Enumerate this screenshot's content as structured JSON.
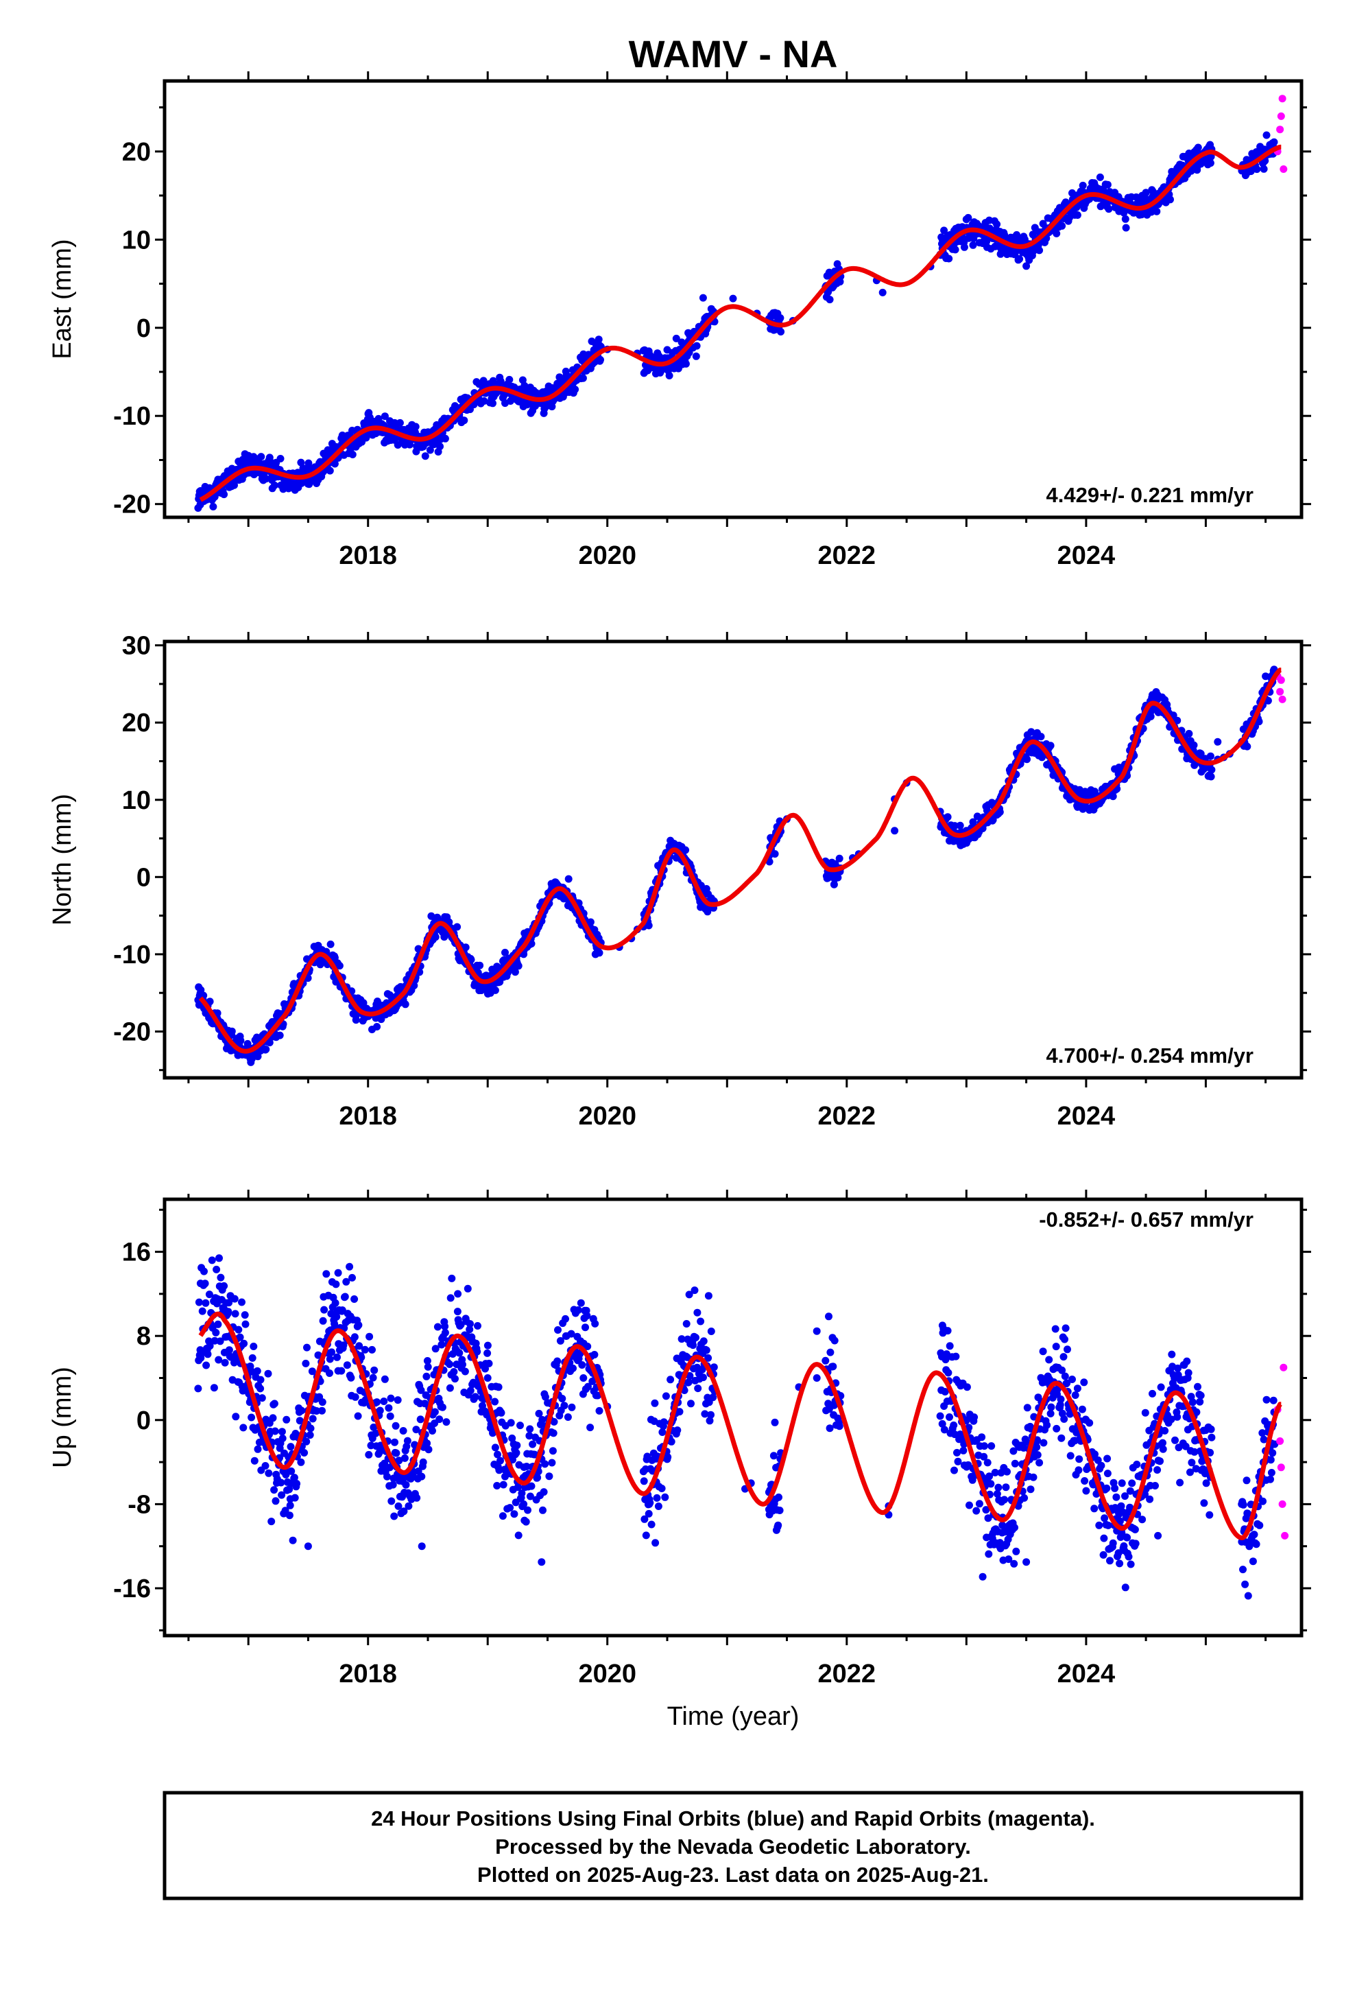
{
  "title": "WAMV - NA",
  "colors": {
    "final_orbits": "#0000ee",
    "rapid_orbits": "#ff00ff",
    "model_fit": "#ee0000",
    "frame": "#000000"
  },
  "chart_data": [
    {
      "type": "scatter",
      "component": "east",
      "title": "WAMV - NA",
      "xlabel": "",
      "ylabel": "East (mm)",
      "xlim": [
        2016.3,
        2025.8
      ],
      "ylim": [
        -21.5,
        28
      ],
      "xticks": [
        2018,
        2020,
        2022,
        2024
      ],
      "yticks": [
        -20,
        -10,
        0,
        10,
        20
      ],
      "rate_text": "4.429+/- 0.221 mm/yr",
      "rate_position": "bottom-right",
      "model": {
        "name": "",
        "color": "#ee0000",
        "x0": 2021.0,
        "intercept": 1.06,
        "slope": 4.429,
        "annual_sin": 0.8,
        "annual_cos": 0.5,
        "semiannual_sin": 0.6,
        "semiannual_cos": 0.7,
        "spline_x": [
          2016.55,
          2017.0,
          2017.5,
          2018.0,
          2018.5,
          2019.0,
          2019.5,
          2020.0,
          2020.5,
          2021.0,
          2021.5,
          2022.0,
          2022.5,
          2023.0,
          2023.5,
          2024.0,
          2024.5,
          2025.0,
          2025.3,
          2025.62
        ],
        "spline_y": [
          -19.8,
          -16.0,
          -16.8,
          -11.5,
          -12.5,
          -7.0,
          -8.0,
          -2.4,
          -4.0,
          2.3,
          0.4,
          6.6,
          5.0,
          11.0,
          9.3,
          15.0,
          13.7,
          19.8,
          18.2,
          20.5
        ]
      },
      "series": [
        {
          "name": "",
          "color": "#0000ee",
          "points": [
            [
              2016.6,
              -18.5
            ],
            [
              2016.8,
              -16.8
            ],
            [
              2017.0,
              -14.5
            ],
            [
              2017.2,
              -15.8
            ],
            [
              2017.4,
              -18.0
            ],
            [
              2017.6,
              -15.2
            ],
            [
              2017.8,
              -12.6
            ],
            [
              2018.0,
              -11.0
            ],
            [
              2018.2,
              -11.2
            ],
            [
              2018.4,
              -12.4
            ],
            [
              2018.6,
              -11.8
            ],
            [
              2018.8,
              -8.0
            ],
            [
              2019.2,
              -7.6
            ],
            [
              2019.4,
              -8.6
            ],
            [
              2019.6,
              -5.6
            ],
            [
              2019.8,
              -3.0
            ],
            [
              2020.5,
              -2.5
            ],
            [
              2020.8,
              3.4
            ],
            [
              2021.4,
              1.7
            ],
            [
              2021.9,
              6.4
            ],
            [
              2022.3,
              4.0
            ],
            [
              2022.8,
              10.0
            ],
            [
              2023.0,
              12.3
            ],
            [
              2023.2,
              10.6
            ],
            [
              2023.5,
              7.0
            ],
            [
              2023.7,
              11.2
            ],
            [
              2024.0,
              14.8
            ],
            [
              2024.2,
              14.4
            ],
            [
              2024.5,
              13.0
            ],
            [
              2024.7,
              16.8
            ],
            [
              2025.0,
              19.8
            ],
            [
              2025.5,
              19.5
            ]
          ]
        },
        {
          "name": "",
          "color": "#ff00ff",
          "points": [
            [
              2025.6,
              20.0
            ],
            [
              2025.62,
              22.5
            ],
            [
              2025.63,
              24.0
            ],
            [
              2025.64,
              26.0
            ],
            [
              2025.65,
              18.0
            ]
          ]
        }
      ]
    },
    {
      "type": "scatter",
      "component": "north",
      "title": "",
      "xlabel": "",
      "ylabel": "North (mm)",
      "xlim": [
        2016.3,
        2025.8
      ],
      "ylim": [
        -26,
        30.5
      ],
      "xticks": [
        2018,
        2020,
        2022,
        2024
      ],
      "yticks": [
        -20,
        -10,
        0,
        10,
        20,
        30
      ],
      "rate_text": "4.700+/- 0.254 mm/yr",
      "rate_position": "bottom-right",
      "model": {
        "name": "",
        "color": "#ee0000",
        "x0": 2021.0,
        "intercept": -2.0,
        "slope": 4.7,
        "annual_sin": 4.9,
        "annual_cos": -1.0,
        "semiannual_sin": 1.0,
        "semiannual_cos": -0.5,
        "spline_x": [
          2016.55,
          2016.95,
          2017.3,
          2017.6,
          2017.95,
          2018.3,
          2018.6,
          2018.95,
          2019.3,
          2019.6,
          2019.95,
          2020.3,
          2020.55,
          2020.85,
          2021.25,
          2021.55,
          2021.85,
          2022.25,
          2022.55,
          2022.9,
          2023.25,
          2023.55,
          2023.95,
          2024.3,
          2024.55,
          2024.95,
          2025.3,
          2025.62
        ],
        "spline_y": [
          -15.0,
          -22.5,
          -18.0,
          -10.0,
          -17.5,
          -15.0,
          -6.0,
          -13.5,
          -9.0,
          -1.5,
          -9.0,
          -6.0,
          3.5,
          -3.5,
          0.5,
          8.0,
          1.0,
          5.0,
          12.8,
          5.5,
          9.0,
          17.5,
          10.0,
          13.0,
          22.5,
          15.0,
          17.5,
          26.8
        ]
      },
      "series": [
        {
          "name": "",
          "color": "#0000ee",
          "points": [
            [
              2016.6,
              -15.0
            ],
            [
              2016.9,
              -22.0
            ],
            [
              2017.2,
              -19.0
            ],
            [
              2017.55,
              -9.0
            ],
            [
              2017.9,
              -18.5
            ],
            [
              2018.2,
              -16.0
            ],
            [
              2018.55,
              -6.0
            ],
            [
              2018.9,
              -14.0
            ],
            [
              2019.3,
              -10.0
            ],
            [
              2019.55,
              -1.0
            ],
            [
              2019.9,
              -10.0
            ],
            [
              2020.55,
              4.0
            ],
            [
              2020.75,
              -2.0
            ],
            [
              2021.4,
              3.0
            ],
            [
              2021.85,
              0.0
            ],
            [
              2022.4,
              6.0
            ],
            [
              2022.8,
              7.5
            ],
            [
              2023.0,
              6.0
            ],
            [
              2023.3,
              10.0
            ],
            [
              2023.6,
              17.0
            ],
            [
              2023.9,
              10.5
            ],
            [
              2024.3,
              14.0
            ],
            [
              2024.55,
              23.0
            ],
            [
              2024.85,
              17.0
            ],
            [
              2025.1,
              17.5
            ],
            [
              2025.5,
              26.0
            ]
          ]
        },
        {
          "name": "",
          "color": "#ff00ff",
          "points": [
            [
              2025.6,
              26.0
            ],
            [
              2025.62,
              24.0
            ],
            [
              2025.63,
              25.5
            ],
            [
              2025.64,
              23.0
            ]
          ]
        }
      ]
    },
    {
      "type": "scatter",
      "component": "up",
      "title": "",
      "xlabel": "Time (year)",
      "ylabel": "Up (mm)",
      "xlim": [
        2016.3,
        2025.8
      ],
      "ylim": [
        -20.5,
        21
      ],
      "xticks": [
        2018,
        2020,
        2022,
        2024
      ],
      "yticks": [
        -16,
        -8,
        0,
        8,
        16
      ],
      "rate_text": "-0.852+/- 0.657 mm/yr",
      "rate_position": "top-right",
      "model": {
        "name": "",
        "color": "#ee0000",
        "x0": 2021.0,
        "intercept": 0.0,
        "slope": -0.852,
        "annual_sin": 3.2,
        "annual_cos": 6.4,
        "semiannual_sin": 0.6,
        "semiannual_cos": -0.4,
        "spline_x": [
          2016.55,
          2016.8,
          2017.3,
          2017.75,
          2018.3,
          2018.75,
          2019.3,
          2019.75,
          2020.3,
          2020.75,
          2021.3,
          2021.75,
          2022.3,
          2022.75,
          2023.3,
          2023.75,
          2024.3,
          2024.75,
          2025.3,
          2025.62
        ],
        "spline_y": [
          7.5,
          9.5,
          -4.5,
          8.5,
          -5.0,
          8.0,
          -6.0,
          7.0,
          -7.0,
          6.0,
          -8.0,
          5.3,
          -8.8,
          4.5,
          -9.5,
          3.5,
          -10.3,
          2.6,
          -11.2,
          1.5
        ]
      },
      "series": [
        {
          "name": "",
          "color": "#0000ee",
          "points": [
            [
              2016.6,
              13.0
            ],
            [
              2016.8,
              10.5
            ],
            [
              2017.1,
              3.0
            ],
            [
              2017.35,
              -7.5
            ],
            [
              2017.5,
              -12.0
            ],
            [
              2017.75,
              14.0
            ],
            [
              2018.0,
              2.5
            ],
            [
              2018.3,
              -7.0
            ],
            [
              2018.45,
              -12.0
            ],
            [
              2018.75,
              12.0
            ],
            [
              2019.0,
              4.0
            ],
            [
              2019.3,
              -8.0
            ],
            [
              2019.45,
              -13.5
            ],
            [
              2019.8,
              4.0
            ],
            [
              2020.35,
              -8.0
            ],
            [
              2020.75,
              5.0
            ],
            [
              2021.35,
              -8.5
            ],
            [
              2021.75,
              4.0
            ],
            [
              2022.35,
              -9.0
            ],
            [
              2022.8,
              9.0
            ],
            [
              2023.0,
              0.0
            ],
            [
              2023.3,
              -10.0
            ],
            [
              2023.5,
              -13.5
            ],
            [
              2023.75,
              7.0
            ],
            [
              2024.0,
              0.0
            ],
            [
              2024.3,
              -6.0
            ],
            [
              2024.6,
              -11.0
            ],
            [
              2024.85,
              4.0
            ],
            [
              2025.3,
              -8.0
            ],
            [
              2025.55,
              -5.0
            ]
          ]
        },
        {
          "name": "",
          "color": "#ff00ff",
          "points": [
            [
              2025.6,
              1.0
            ],
            [
              2025.62,
              -2.0
            ],
            [
              2025.63,
              -4.5
            ],
            [
              2025.64,
              -8.0
            ],
            [
              2025.65,
              5.0
            ],
            [
              2025.66,
              -11.0
            ]
          ]
        }
      ]
    }
  ],
  "caption": {
    "lines": [
      "24 Hour Positions Using Final Orbits (blue) and Rapid Orbits (magenta).",
      "Processed by the Nevada Geodetic Laboratory.",
      "Plotted on 2025-Aug-23. Last data on 2025-Aug-21."
    ]
  }
}
